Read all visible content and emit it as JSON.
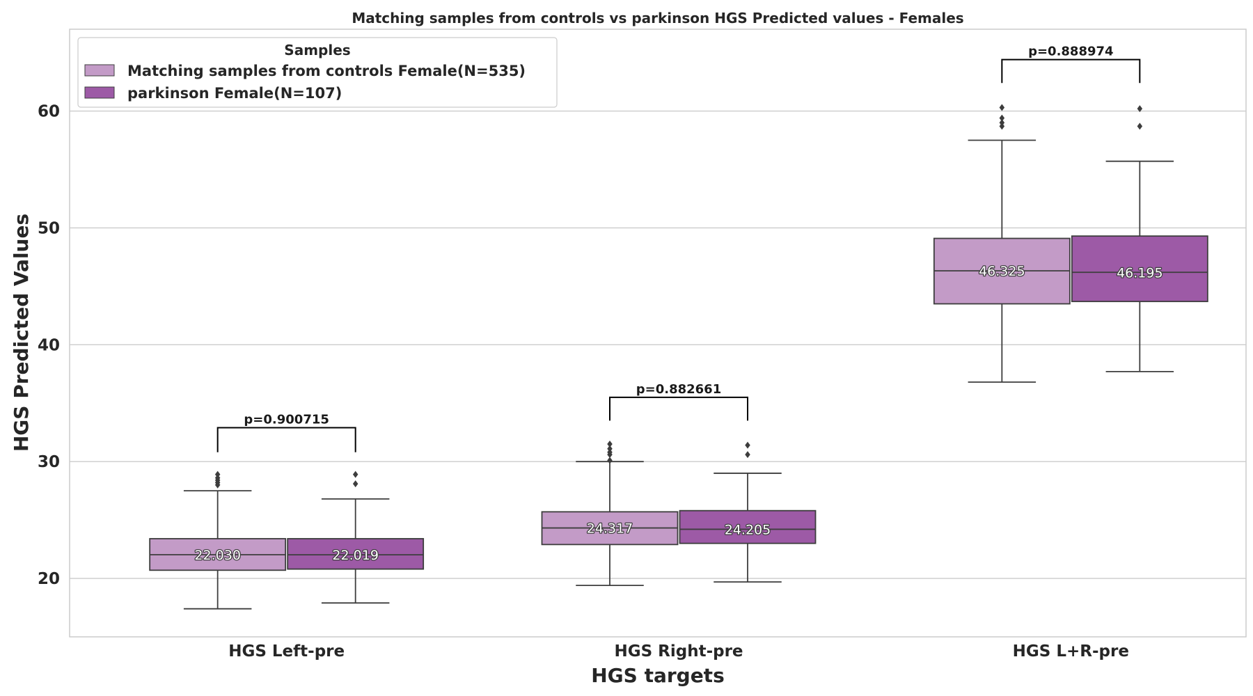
{
  "chart_data": {
    "type": "boxplot",
    "title": "Matching samples from controls vs parkinson HGS Predicted values - Females",
    "xlabel": "HGS targets",
    "ylabel": "HGS Predicted Values",
    "ylim": [
      15,
      67
    ],
    "yticks": [
      20,
      30,
      40,
      50,
      60
    ],
    "grid": true,
    "categories": [
      "HGS Left-pre",
      "HGS Right-pre",
      "HGS L+R-pre"
    ],
    "legend": {
      "title": "Samples",
      "placement": "upper-left"
    },
    "series": [
      {
        "name": "Matching samples from controls Female(N=535)",
        "color": "#c39bc7",
        "boxes": [
          {
            "whisker_low": 17.4,
            "q1": 20.7,
            "median": 22.03,
            "q3": 23.4,
            "whisker_high": 27.5,
            "outliers": [
              28.0,
              28.2,
              28.4,
              28.6,
              28.9
            ],
            "median_label": "22.030"
          },
          {
            "whisker_low": 19.4,
            "q1": 22.9,
            "median": 24.317,
            "q3": 25.7,
            "whisker_high": 30.0,
            "outliers": [
              30.1,
              30.6,
              30.8,
              31.1,
              31.5
            ],
            "median_label": "24.317"
          },
          {
            "whisker_low": 36.8,
            "q1": 43.5,
            "median": 46.325,
            "q3": 49.1,
            "whisker_high": 57.5,
            "outliers": [
              58.7,
              59.0,
              59.4,
              60.3
            ],
            "median_label": "46.325"
          }
        ]
      },
      {
        "name": "parkinson Female(N=107)",
        "color": "#9d5aa6",
        "boxes": [
          {
            "whisker_low": 17.9,
            "q1": 20.8,
            "median": 22.019,
            "q3": 23.4,
            "whisker_high": 26.8,
            "outliers": [
              28.1,
              28.9
            ],
            "median_label": "22.019"
          },
          {
            "whisker_low": 19.7,
            "q1": 23.0,
            "median": 24.205,
            "q3": 25.8,
            "whisker_high": 29.0,
            "outliers": [
              30.6,
              31.4
            ],
            "median_label": "24.205"
          },
          {
            "whisker_low": 37.7,
            "q1": 43.7,
            "median": 46.195,
            "q3": 49.3,
            "whisker_high": 55.7,
            "outliers": [
              58.7,
              60.2
            ],
            "median_label": "46.195"
          }
        ]
      }
    ],
    "annotations": [
      {
        "category_index": 0,
        "text": "p=0.900715",
        "bracket_bottom": 30.8,
        "bracket_top": 32.9
      },
      {
        "category_index": 1,
        "text": "p=0.882661",
        "bracket_bottom": 33.5,
        "bracket_top": 35.5
      },
      {
        "category_index": 2,
        "text": "p=0.888974",
        "bracket_bottom": 62.4,
        "bracket_top": 64.4
      }
    ]
  }
}
